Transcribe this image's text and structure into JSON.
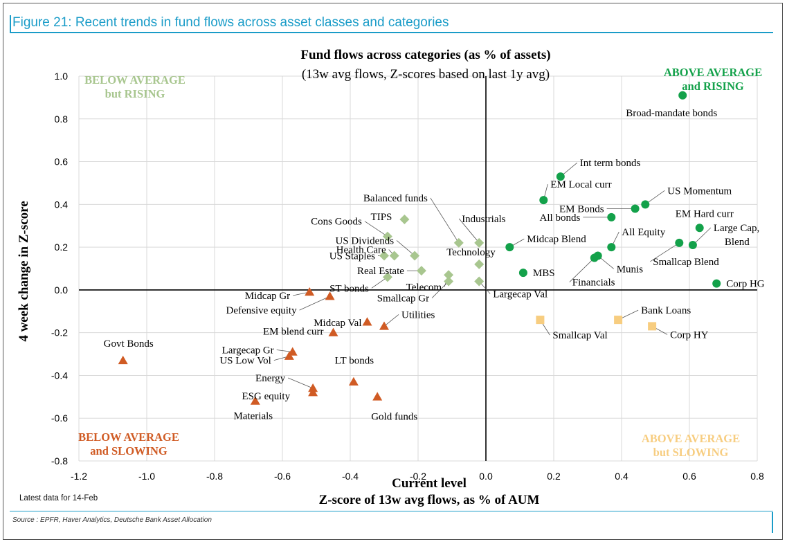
{
  "figure_title": "Figure 21: Recent trends in fund flows across asset classes and categories",
  "note": "Latest data for 14-Feb",
  "source": "Source : EPFR, Haver Analytics, Deutsche Bank Asset Allocation",
  "chart_data": {
    "type": "scatter",
    "title": "Fund flows across categories (as % of assets)",
    "subtitle": "(13w avg flows, Z-scores based on last 1y avg)",
    "xlabel_line1": "Current level",
    "xlabel_line2": "Z-score of 13w avg flows, as % of AUM",
    "ylabel": "4 week change in Z-score",
    "xlim": [
      -1.2,
      0.8
    ],
    "ylim": [
      -0.8,
      1.0
    ],
    "xticks": [
      "-1.2",
      "-1.0",
      "-0.8",
      "-0.6",
      "-0.4",
      "-0.2",
      "0.0",
      "0.2",
      "0.4",
      "0.6",
      "0.8"
    ],
    "yticks": [
      "1.0",
      "0.8",
      "0.6",
      "0.4",
      "0.2",
      "0.0",
      "-0.2",
      "-0.4",
      "-0.6",
      "-0.8"
    ],
    "grid": true,
    "quadrants": {
      "top_left": [
        "BELOW AVERAGE",
        "but RISING"
      ],
      "top_right": [
        "ABOVE AVERAGE",
        "and RISING"
      ],
      "bottom_left": [
        "BELOW AVERAGE",
        "and SLOWING"
      ],
      "bottom_right": [
        "ABOVE AVERAGE",
        "but SLOWING"
      ]
    },
    "colors": {
      "above_rising": "#13a14a",
      "below_rising": "#a8c68f",
      "below_slowing": "#d05b24",
      "above_slowing": "#f7cd80",
      "grid": "#d9d9d9",
      "axis": "#000000"
    },
    "series": [
      {
        "group": "above_rising",
        "marker": "circle",
        "points": [
          {
            "label": "Broad-mandate bonds",
            "x": 0.58,
            "y": 0.91
          },
          {
            "label": "Int term bonds",
            "x": 0.22,
            "y": 0.53
          },
          {
            "label": "EM Local curr",
            "x": 0.17,
            "y": 0.42
          },
          {
            "label": "US Momentum",
            "x": 0.47,
            "y": 0.4
          },
          {
            "label": "EM Bonds",
            "x": 0.44,
            "y": 0.38
          },
          {
            "label": "EM Hard curr",
            "x": 0.63,
            "y": 0.29
          },
          {
            "label": "All bonds",
            "x": 0.37,
            "y": 0.34
          },
          {
            "label": "Large Cap, Blend",
            "x": 0.61,
            "y": 0.21
          },
          {
            "label": "All Equity",
            "x": 0.37,
            "y": 0.2
          },
          {
            "label": "Smallcap Blend",
            "x": 0.57,
            "y": 0.22
          },
          {
            "label": "Midcap Blend",
            "x": 0.07,
            "y": 0.2
          },
          {
            "label": "Munis",
            "x": 0.33,
            "y": 0.16
          },
          {
            "label": "Financials",
            "x": 0.32,
            "y": 0.15
          },
          {
            "label": "MBS",
            "x": 0.11,
            "y": 0.08
          },
          {
            "label": "Corp HG",
            "x": 0.68,
            "y": 0.03
          }
        ]
      },
      {
        "group": "below_rising",
        "marker": "diamond",
        "points": [
          {
            "label": "TIPS",
            "x": -0.24,
            "y": 0.33
          },
          {
            "label": "Balanced funds",
            "x": -0.08,
            "y": 0.22
          },
          {
            "label": "Industrials",
            "x": -0.02,
            "y": 0.22
          },
          {
            "label": "Cons Goods",
            "x": -0.29,
            "y": 0.25
          },
          {
            "label": "US Dividends",
            "x": -0.21,
            "y": 0.16
          },
          {
            "label": "Health Care",
            "x": -0.27,
            "y": 0.16
          },
          {
            "label": "US Staples",
            "x": -0.3,
            "y": 0.16
          },
          {
            "label": "Technology",
            "x": -0.02,
            "y": 0.12
          },
          {
            "label": "Real Estate",
            "x": -0.19,
            "y": 0.09
          },
          {
            "label": "ST bonds",
            "x": -0.29,
            "y": 0.06
          },
          {
            "label": "Telecom",
            "x": -0.11,
            "y": 0.07
          },
          {
            "label": "Smallcap Gr",
            "x": -0.11,
            "y": 0.04
          },
          {
            "label": "Largecap Val",
            "x": -0.02,
            "y": 0.04
          }
        ]
      },
      {
        "group": "below_slowing",
        "marker": "triangle",
        "points": [
          {
            "label": "Midcap Gr",
            "x": -0.52,
            "y": -0.01
          },
          {
            "label": "Defensive equity",
            "x": -0.46,
            "y": -0.03
          },
          {
            "label": "Midcap Val",
            "x": -0.35,
            "y": -0.15
          },
          {
            "label": "Utilities",
            "x": -0.3,
            "y": -0.17
          },
          {
            "label": "EM blend curr",
            "x": -0.45,
            "y": -0.2
          },
          {
            "label": "Govt Bonds",
            "x": -1.07,
            "y": -0.33
          },
          {
            "label": "Largecap Gr",
            "x": -0.57,
            "y": -0.29
          },
          {
            "label": "US Low Vol",
            "x": -0.58,
            "y": -0.31
          },
          {
            "label": "LT bonds",
            "x": -0.39,
            "y": -0.43
          },
          {
            "label": "Energy",
            "x": -0.51,
            "y": -0.46
          },
          {
            "label": "ESG equity",
            "x": -0.51,
            "y": -0.48
          },
          {
            "label": "Gold funds",
            "x": -0.32,
            "y": -0.5
          },
          {
            "label": "Materials",
            "x": -0.68,
            "y": -0.52
          }
        ]
      },
      {
        "group": "above_slowing",
        "marker": "square",
        "points": [
          {
            "label": "Smallcap Val",
            "x": 0.16,
            "y": -0.14
          },
          {
            "label": "Bank Loans",
            "x": 0.39,
            "y": -0.14
          },
          {
            "label": "Corp HY",
            "x": 0.49,
            "y": -0.17
          }
        ]
      }
    ]
  }
}
